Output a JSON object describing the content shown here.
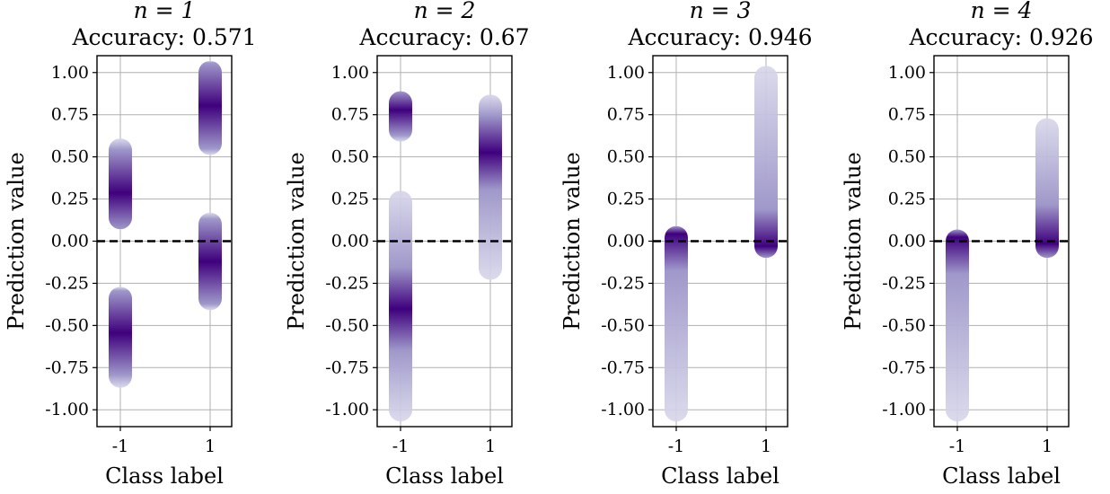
{
  "figure": {
    "panels": [
      {
        "title_n": "n = 1",
        "title_acc": "Accuracy: 0.571"
      },
      {
        "title_n": "n = 2",
        "title_acc": "Accuracy: 0.67"
      },
      {
        "title_n": "n = 3",
        "title_acc": "Accuracy: 0.946"
      },
      {
        "title_n": "n = 4",
        "title_acc": "Accuracy: 0.926"
      }
    ]
  },
  "colors": {
    "light": "#d7d6ea",
    "mid": "#9f98ca",
    "dark": "#3f007d",
    "threshold": "#000000",
    "grid": "#b0b0b0"
  },
  "chart_data": [
    {
      "type": "scatter",
      "title": "n = 1\nAccuracy: 0.571",
      "xlabel": "Class label",
      "ylabel": "Prediction value",
      "categories": [
        "-1",
        "1"
      ],
      "ylim": [
        -1.1,
        1.1
      ],
      "yticks": [
        "1.00",
        "0.75",
        "0.50",
        "0.25",
        "0.00",
        "-0.25",
        "-0.50",
        "-0.75",
        "-1.00"
      ],
      "ytick_values": [
        1.0,
        0.75,
        0.5,
        0.25,
        0.0,
        -0.25,
        -0.5,
        -0.75,
        -1.0
      ],
      "grid": true,
      "threshold_y": 0.0,
      "series": [
        {
          "x": "-1",
          "clusters": [
            {
              "y_min": 0.14,
              "y_max": 0.54,
              "center": 0.3
            },
            {
              "y_min": -0.8,
              "y_max": -0.34,
              "center": -0.55
            }
          ]
        },
        {
          "x": "1",
          "clusters": [
            {
              "y_min": 0.58,
              "y_max": 1.0,
              "center": 0.8
            },
            {
              "y_min": -0.34,
              "y_max": 0.1,
              "center": -0.12
            }
          ]
        }
      ]
    },
    {
      "type": "scatter",
      "title": "n = 2\nAccuracy: 0.67",
      "xlabel": "Class label",
      "ylabel": "Prediction value",
      "categories": [
        "-1",
        "1"
      ],
      "ylim": [
        -1.1,
        1.1
      ],
      "yticks": [
        "1.00",
        "0.75",
        "0.50",
        "0.25",
        "0.00",
        "-0.25",
        "-0.50",
        "-0.75",
        "-1.00"
      ],
      "ytick_values": [
        1.0,
        0.75,
        0.5,
        0.25,
        0.0,
        -0.25,
        -0.5,
        -0.75,
        -1.0
      ],
      "grid": true,
      "threshold_y": 0.0,
      "series": [
        {
          "x": "-1",
          "clusters": [
            {
              "y_min": 0.66,
              "y_max": 0.82,
              "center": 0.76
            },
            {
              "y_min": -1.0,
              "y_max": 0.23,
              "center": -0.4
            }
          ]
        },
        {
          "x": "1",
          "clusters": [
            {
              "y_min": -0.16,
              "y_max": 0.8,
              "center": 0.5
            }
          ]
        }
      ]
    },
    {
      "type": "scatter",
      "title": "n = 3\nAccuracy: 0.946",
      "xlabel": "Class label",
      "ylabel": "Prediction value",
      "categories": [
        "-1",
        "1"
      ],
      "ylim": [
        -1.1,
        1.1
      ],
      "yticks": [
        "1.00",
        "0.75",
        "0.50",
        "0.25",
        "0.00",
        "-0.25",
        "-0.50",
        "-0.75",
        "-1.00"
      ],
      "ytick_values": [
        1.0,
        0.75,
        0.5,
        0.25,
        0.0,
        -0.25,
        -0.5,
        -0.75,
        -1.0
      ],
      "grid": true,
      "threshold_y": 0.0,
      "series": [
        {
          "x": "-1",
          "clusters": [
            {
              "y_min": -1.0,
              "y_max": 0.02,
              "center": -0.02
            }
          ]
        },
        {
          "x": "1",
          "clusters": [
            {
              "y_min": -0.03,
              "y_max": 0.97,
              "center": 0.03
            }
          ]
        }
      ]
    },
    {
      "type": "scatter",
      "title": "n = 4\nAccuracy: 0.926",
      "xlabel": "Class label",
      "ylabel": "Prediction value",
      "categories": [
        "-1",
        "1"
      ],
      "ylim": [
        -1.1,
        1.1
      ],
      "yticks": [
        "1.00",
        "0.75",
        "0.50",
        "0.25",
        "0.00",
        "-0.25",
        "-0.50",
        "-0.75",
        "-1.00"
      ],
      "ytick_values": [
        1.0,
        0.75,
        0.5,
        0.25,
        0.0,
        -0.25,
        -0.5,
        -0.75,
        -1.0
      ],
      "grid": true,
      "threshold_y": 0.0,
      "series": [
        {
          "x": "-1",
          "clusters": [
            {
              "y_min": -1.0,
              "y_max": 0.0,
              "center": -0.04
            }
          ]
        },
        {
          "x": "1",
          "clusters": [
            {
              "y_min": -0.03,
              "y_max": 0.66,
              "center": 0.04
            }
          ]
        }
      ]
    }
  ]
}
